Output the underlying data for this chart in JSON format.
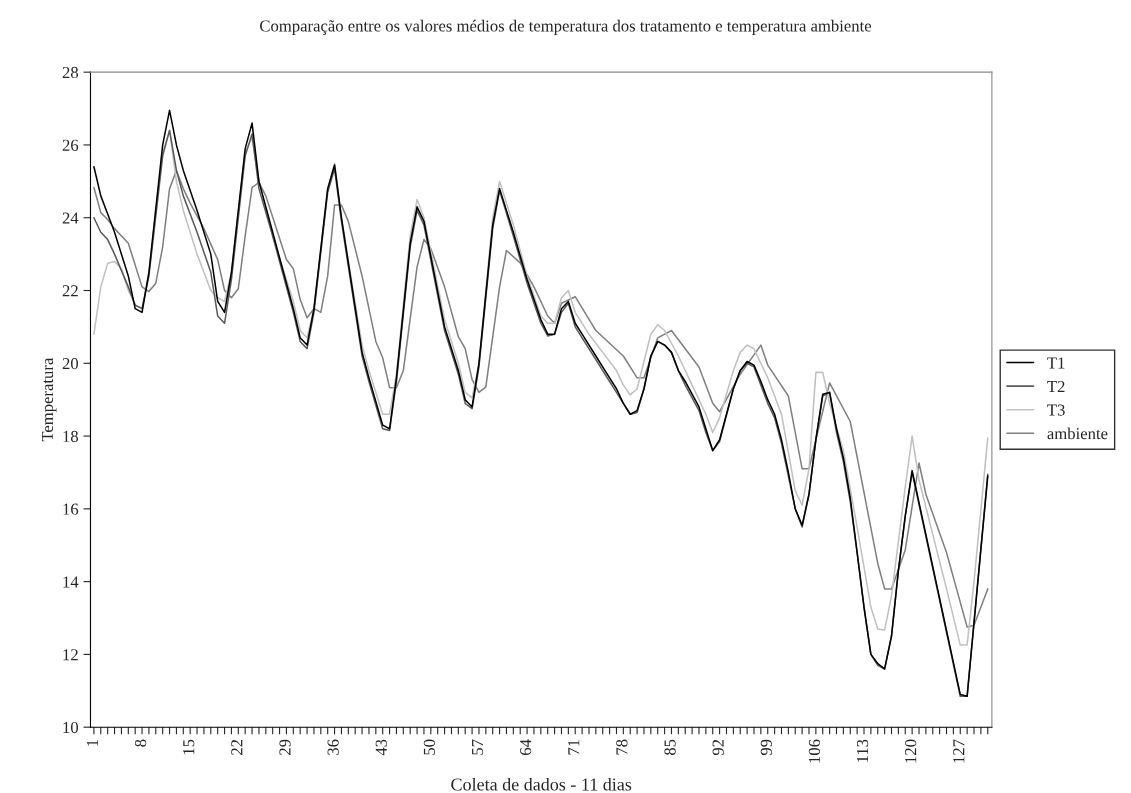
{
  "chart_data": {
    "type": "line",
    "title": "Comparação entre os valores médios de temperatura dos tratamento e temperatura ambiente",
    "xlabel": "Coleta de dados - 11 dias",
    "ylabel": "Temperatura",
    "xlim": [
      0.5,
      131.6
    ],
    "ylim": [
      10,
      28
    ],
    "yticks": [
      10,
      12,
      14,
      16,
      18,
      20,
      22,
      24,
      26,
      28
    ],
    "xticks": [
      1,
      {
        "value": 2,
        "label": null
      },
      {
        "value": 3,
        "label": null
      },
      {
        "value": 4,
        "label": null
      },
      {
        "value": 5,
        "label": null
      },
      {
        "value": 6,
        "label": null
      },
      {
        "value": 7,
        "label": null
      },
      8,
      {
        "value": 9,
        "label": null
      },
      {
        "value": 10,
        "label": null
      },
      {
        "value": 11,
        "label": null
      },
      {
        "value": 12,
        "label": null
      },
      {
        "value": 13,
        "label": null
      },
      {
        "value": 14,
        "label": null
      },
      15,
      {
        "value": 16,
        "label": null
      },
      {
        "value": 17,
        "label": null
      },
      {
        "value": 18,
        "label": null
      },
      {
        "value": 19,
        "label": null
      },
      {
        "value": 20,
        "label": null
      },
      {
        "value": 21,
        "label": null
      },
      22,
      {
        "value": 23,
        "label": null
      },
      {
        "value": 24,
        "label": null
      },
      {
        "value": 25,
        "label": null
      },
      {
        "value": 26,
        "label": null
      },
      {
        "value": 27,
        "label": null
      },
      {
        "value": 28,
        "label": null
      },
      29,
      {
        "value": 30,
        "label": null
      },
      {
        "value": 31,
        "label": null
      },
      {
        "value": 32,
        "label": null
      },
      {
        "value": 33,
        "label": null
      },
      {
        "value": 34,
        "label": null
      },
      {
        "value": 35,
        "label": null
      },
      36,
      {
        "value": 37,
        "label": null
      },
      {
        "value": 38,
        "label": null
      },
      {
        "value": 39,
        "label": null
      },
      {
        "value": 40,
        "label": null
      },
      {
        "value": 41,
        "label": null
      },
      {
        "value": 42,
        "label": null
      },
      43,
      {
        "value": 44,
        "label": null
      },
      {
        "value": 45,
        "label": null
      },
      {
        "value": 46,
        "label": null
      },
      {
        "value": 47,
        "label": null
      },
      {
        "value": 48,
        "label": null
      },
      {
        "value": 49,
        "label": null
      },
      50,
      {
        "value": 51,
        "label": null
      },
      {
        "value": 52,
        "label": null
      },
      {
        "value": 53,
        "label": null
      },
      {
        "value": 54,
        "label": null
      },
      {
        "value": 55,
        "label": null
      },
      {
        "value": 56,
        "label": null
      },
      57,
      {
        "value": 58,
        "label": null
      },
      {
        "value": 59,
        "label": null
      },
      {
        "value": 60,
        "label": null
      },
      {
        "value": 61,
        "label": null
      },
      {
        "value": 62,
        "label": null
      },
      {
        "value": 63,
        "label": null
      },
      64,
      {
        "value": 65,
        "label": null
      },
      {
        "value": 66,
        "label": null
      },
      {
        "value": 67,
        "label": null
      },
      {
        "value": 68,
        "label": null
      },
      {
        "value": 69,
        "label": null
      },
      {
        "value": 70,
        "label": null
      },
      71,
      {
        "value": 72,
        "label": null
      },
      {
        "value": 73,
        "label": null
      },
      {
        "value": 74,
        "label": null
      },
      {
        "value": 75,
        "label": null
      },
      {
        "value": 76,
        "label": null
      },
      {
        "value": 77,
        "label": null
      },
      78,
      {
        "value": 79,
        "label": null
      },
      {
        "value": 80,
        "label": null
      },
      {
        "value": 81,
        "label": null
      },
      {
        "value": 82,
        "label": null
      },
      {
        "value": 83,
        "label": null
      },
      {
        "value": 84,
        "label": null
      },
      85,
      {
        "value": 86,
        "label": null
      },
      {
        "value": 87,
        "label": null
      },
      {
        "value": 88,
        "label": null
      },
      {
        "value": 89,
        "label": null
      },
      {
        "value": 90,
        "label": null
      },
      {
        "value": 91,
        "label": null
      },
      92,
      {
        "value": 93,
        "label": null
      },
      {
        "value": 94,
        "label": null
      },
      {
        "value": 95,
        "label": null
      },
      {
        "value": 96,
        "label": null
      },
      {
        "value": 97,
        "label": null
      },
      {
        "value": 98,
        "label": null
      },
      99,
      {
        "value": 100,
        "label": null
      },
      {
        "value": 101,
        "label": null
      },
      {
        "value": 102,
        "label": null
      },
      {
        "value": 103,
        "label": null
      },
      {
        "value": 104,
        "label": null
      },
      {
        "value": 105,
        "label": null
      },
      106,
      {
        "value": 107,
        "label": null
      },
      {
        "value": 108,
        "label": null
      },
      {
        "value": 109,
        "label": null
      },
      {
        "value": 110,
        "label": null
      },
      {
        "value": 111,
        "label": null
      },
      {
        "value": 112,
        "label": null
      },
      113,
      {
        "value": 114,
        "label": null
      },
      {
        "value": 115,
        "label": null
      },
      {
        "value": 116,
        "label": null
      },
      {
        "value": 117,
        "label": null
      },
      {
        "value": 118,
        "label": null
      },
      {
        "value": 119,
        "label": null
      },
      120,
      {
        "value": 121,
        "label": null
      },
      {
        "value": 122,
        "label": null
      },
      {
        "value": 123,
        "label": null
      },
      {
        "value": 124,
        "label": null
      },
      {
        "value": 125,
        "label": null
      },
      {
        "value": 126,
        "label": null
      },
      127,
      {
        "value": 128,
        "label": null
      },
      {
        "value": 129,
        "label": null
      },
      {
        "value": 130,
        "label": null
      },
      {
        "value": 131,
        "label": null
      }
    ],
    "grid": false,
    "legend": "right",
    "marker": "none",
    "line_style": "solid",
    "series": [
      {
        "name": "T1",
        "color": "#000000",
        "x": [
          1,
          2,
          3,
          4,
          6,
          7,
          8,
          9,
          11,
          12,
          13,
          14,
          16,
          18,
          19,
          20,
          21,
          23,
          24,
          25,
          27,
          30,
          31,
          32,
          33,
          35,
          36,
          37,
          40,
          41,
          43,
          44,
          45,
          47,
          48,
          49,
          52,
          54,
          55,
          56,
          57,
          59,
          60,
          62,
          64,
          66,
          67,
          68,
          69,
          70,
          71,
          72,
          74,
          76,
          77,
          78,
          79,
          80,
          81,
          82,
          83,
          84,
          85,
          86,
          87,
          89,
          90,
          91,
          92,
          94,
          95,
          96,
          97,
          98,
          99,
          100,
          101,
          102,
          103,
          104,
          105,
          106,
          107,
          108,
          109,
          110,
          111,
          112,
          113,
          114,
          115,
          116,
          117,
          118,
          119,
          120,
          127,
          128,
          131
        ],
        "values": [
          25.4,
          24.6,
          24.1,
          23.6,
          22.4,
          21.5,
          21.4,
          22.5,
          26.0,
          26.95,
          26.0,
          25.3,
          24.2,
          23.0,
          21.7,
          21.4,
          22.5,
          25.9,
          26.6,
          25.0,
          23.6,
          21.5,
          20.7,
          20.5,
          21.5,
          24.8,
          25.45,
          24.0,
          20.3,
          19.6,
          18.3,
          18.2,
          19.6,
          23.3,
          24.3,
          23.9,
          21.0,
          19.8,
          19.0,
          18.8,
          20.0,
          23.8,
          24.8,
          23.6,
          22.3,
          21.2,
          20.8,
          20.8,
          21.5,
          21.7,
          21.1,
          20.8,
          20.2,
          19.6,
          19.3,
          18.9,
          18.6,
          18.7,
          19.3,
          20.2,
          20.6,
          20.5,
          20.3,
          19.8,
          19.5,
          18.8,
          18.2,
          17.6,
          17.9,
          19.3,
          19.8,
          20.05,
          19.95,
          19.5,
          19.0,
          18.6,
          17.9,
          17.0,
          16.0,
          15.55,
          16.4,
          17.9,
          19.15,
          19.2,
          18.2,
          17.4,
          16.3,
          14.8,
          13.3,
          12.0,
          11.75,
          11.6,
          12.5,
          14.3,
          15.8,
          17.05,
          10.9,
          10.85,
          16.9
        ]
      },
      {
        "name": "T2",
        "color": "#5a5a5a",
        "x": [
          1,
          2,
          3,
          4,
          6,
          7,
          8,
          9,
          11,
          12,
          13,
          14,
          16,
          18,
          19,
          20,
          21,
          23,
          24,
          25,
          27,
          30,
          31,
          32,
          33,
          35,
          36,
          37,
          40,
          41,
          43,
          44,
          45,
          47,
          48,
          49,
          52,
          54,
          55,
          56,
          57,
          59,
          60,
          62,
          64,
          66,
          67,
          68,
          69,
          70,
          71,
          72,
          74,
          76,
          77,
          78,
          79,
          80,
          81,
          82,
          83,
          84,
          85,
          86,
          87,
          89,
          90,
          91,
          92,
          94,
          95,
          96,
          97,
          98,
          99,
          100,
          101,
          102,
          103,
          104,
          105,
          106,
          107,
          108,
          109,
          110,
          111,
          112,
          113,
          114,
          115,
          116,
          117,
          118,
          119,
          120,
          127,
          128,
          131
        ],
        "values": [
          24.0,
          23.6,
          23.4,
          23.0,
          22.1,
          21.6,
          21.5,
          22.4,
          25.7,
          26.4,
          25.3,
          24.6,
          23.6,
          22.5,
          21.3,
          21.1,
          22.3,
          25.7,
          26.3,
          24.8,
          23.5,
          21.4,
          20.6,
          20.4,
          21.4,
          24.7,
          25.35,
          23.9,
          20.2,
          19.5,
          18.2,
          18.15,
          19.5,
          23.2,
          24.2,
          23.8,
          20.9,
          19.7,
          18.9,
          18.75,
          19.9,
          23.7,
          24.75,
          23.5,
          22.2,
          21.1,
          20.75,
          20.8,
          21.4,
          21.65,
          21.0,
          20.7,
          20.1,
          19.5,
          19.2,
          18.9,
          18.6,
          18.65,
          19.3,
          20.2,
          20.6,
          20.5,
          20.3,
          19.8,
          19.4,
          18.7,
          18.1,
          17.6,
          17.85,
          19.3,
          19.8,
          20.0,
          19.9,
          19.4,
          18.9,
          18.5,
          17.8,
          16.9,
          16.0,
          15.5,
          16.4,
          17.9,
          19.1,
          19.2,
          18.1,
          17.3,
          16.2,
          14.8,
          13.3,
          12.0,
          11.7,
          11.6,
          12.5,
          14.3,
          15.8,
          17.0,
          10.85,
          10.85,
          16.95
        ]
      },
      {
        "name": "T3",
        "color": "#c0c0c0",
        "x": [
          1,
          2,
          3,
          4,
          5,
          6,
          7,
          8,
          9,
          11,
          12,
          13,
          14,
          16,
          18,
          19,
          20,
          21,
          23,
          24,
          25,
          27,
          30,
          31,
          32,
          33,
          35,
          36,
          37,
          40,
          41,
          43,
          44,
          45,
          47,
          48,
          49,
          52,
          54,
          55,
          56,
          57,
          59,
          60,
          62,
          64,
          66,
          67,
          68,
          69,
          70,
          71,
          73,
          75,
          77,
          78,
          79,
          80,
          82,
          83,
          84,
          86,
          88,
          90,
          91,
          92,
          94,
          95,
          96,
          97,
          99,
          101,
          103,
          104,
          105,
          106,
          107,
          108,
          110,
          112,
          114,
          115,
          116,
          117,
          119,
          120,
          121,
          123,
          125,
          127,
          128,
          129,
          131
        ],
        "values": [
          20.8,
          22.1,
          22.75,
          22.8,
          22.6,
          22.0,
          21.6,
          21.5,
          22.5,
          25.8,
          26.4,
          25.0,
          24.2,
          23.0,
          22.0,
          21.8,
          21.7,
          22.5,
          25.8,
          26.2,
          25.0,
          23.5,
          21.7,
          20.9,
          20.7,
          21.5,
          24.8,
          25.5,
          24.0,
          20.5,
          19.8,
          18.6,
          18.6,
          19.7,
          23.5,
          24.5,
          24.0,
          21.2,
          20.0,
          19.2,
          19.05,
          20.0,
          24.0,
          25.0,
          23.8,
          22.4,
          21.3,
          21.1,
          21.1,
          21.8,
          22.0,
          21.4,
          20.8,
          20.3,
          19.8,
          19.4,
          19.13,
          19.3,
          20.8,
          21.06,
          20.9,
          20.2,
          19.4,
          18.6,
          18.1,
          18.5,
          19.8,
          20.3,
          20.5,
          20.4,
          19.6,
          18.6,
          16.5,
          16.1,
          17.1,
          19.75,
          19.75,
          18.9,
          17.6,
          15.5,
          13.3,
          12.7,
          12.67,
          13.6,
          16.6,
          18.0,
          16.8,
          15.3,
          13.8,
          12.26,
          12.26,
          14.0,
          17.95
        ]
      },
      {
        "name": "ambiente",
        "color": "#808080",
        "x": [
          1,
          2,
          3,
          4,
          6,
          8,
          9,
          10,
          11,
          12,
          13,
          14,
          15,
          17,
          19,
          20,
          21,
          22,
          23,
          24,
          25,
          26,
          29,
          30,
          31,
          32,
          33,
          34,
          35,
          36,
          37,
          38,
          40,
          42,
          43,
          44,
          45,
          46,
          48,
          49,
          50,
          52,
          54,
          55,
          56,
          57,
          58,
          60,
          61,
          63,
          65,
          67,
          68,
          69,
          71,
          74,
          78,
          80,
          81,
          83,
          85,
          89,
          91,
          92,
          95,
          98,
          99,
          102,
          104,
          105,
          106,
          108,
          111,
          115,
          116,
          117,
          119,
          121,
          122,
          125,
          128,
          129,
          131
        ],
        "values": [
          24.83,
          24.14,
          23.95,
          23.7,
          23.3,
          22.1,
          21.97,
          22.2,
          23.2,
          24.8,
          25.3,
          24.8,
          24.4,
          23.7,
          22.85,
          22.0,
          21.8,
          22.05,
          23.5,
          24.83,
          24.97,
          24.6,
          22.85,
          22.6,
          21.75,
          21.25,
          21.5,
          21.4,
          22.4,
          24.35,
          24.35,
          23.9,
          22.4,
          20.6,
          20.15,
          19.33,
          19.33,
          19.8,
          22.65,
          23.4,
          23.15,
          22.1,
          20.73,
          20.4,
          19.55,
          19.2,
          19.35,
          22.1,
          23.1,
          22.76,
          22.1,
          21.3,
          21.1,
          21.65,
          21.83,
          20.9,
          20.2,
          19.6,
          19.6,
          20.7,
          20.9,
          19.9,
          18.9,
          18.67,
          19.7,
          20.5,
          19.95,
          19.1,
          17.1,
          17.1,
          17.9,
          19.46,
          18.4,
          14.5,
          13.8,
          13.8,
          14.87,
          17.26,
          16.4,
          14.8,
          12.75,
          12.8,
          13.8
        ]
      }
    ]
  }
}
